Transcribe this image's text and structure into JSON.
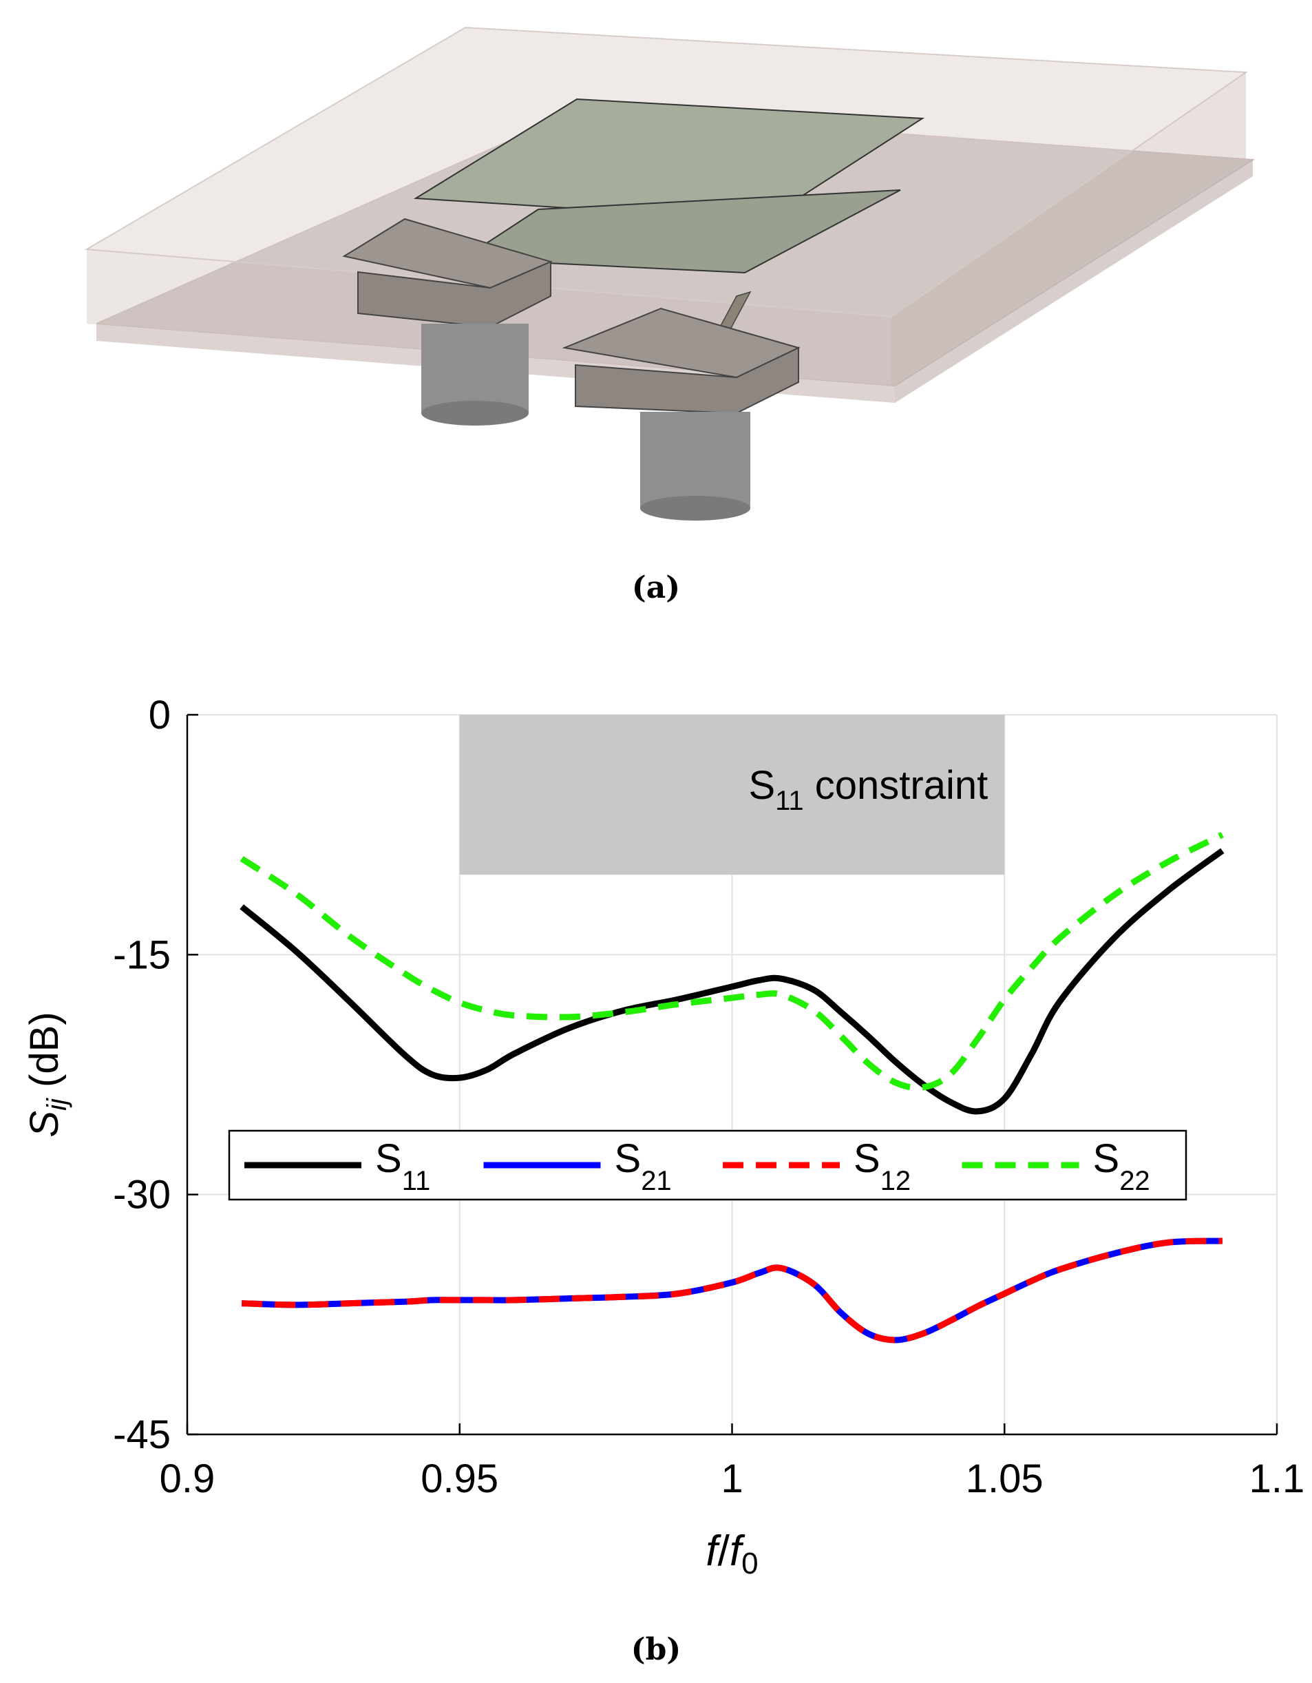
{
  "panel_a": {
    "caption": "(a)",
    "icon": "antenna-3d-model-illustration"
  },
  "panel_b": {
    "caption": "(b)"
  },
  "chart_data": {
    "type": "line",
    "title": "",
    "xlabel": "f/f0",
    "ylabel": "S_ij (dB)",
    "xlim": [
      0.9,
      1.1
    ],
    "ylim": [
      -45,
      0
    ],
    "xticks": [
      "0.9",
      "0.95",
      "1",
      "1.05",
      "1.1"
    ],
    "yticks": [
      "0",
      "-15",
      "-30",
      "-45"
    ],
    "grid": true,
    "legend_position": "lower-middle",
    "constraint_region": {
      "label_main": "S",
      "label_sub": "11",
      "label_rest": " constraint",
      "x": [
        0.95,
        1.05
      ],
      "y": [
        -10,
        0
      ],
      "color": "#c8c8c8"
    },
    "x": [
      0.91,
      0.92,
      0.93,
      0.94,
      0.945,
      0.95,
      0.955,
      0.96,
      0.97,
      0.98,
      0.99,
      1.0,
      1.005,
      1.009,
      1.015,
      1.02,
      1.025,
      1.03,
      1.035,
      1.04,
      1.045,
      1.05,
      1.055,
      1.06,
      1.07,
      1.08,
      1.09
    ],
    "series": [
      {
        "name": "S",
        "sub": "11",
        "color": "#000000",
        "dash": "solid",
        "values": [
          -12.0,
          -14.8,
          -18.0,
          -21.3,
          -22.5,
          -22.7,
          -22.2,
          -21.2,
          -19.6,
          -18.5,
          -17.8,
          -17.0,
          -16.6,
          -16.5,
          -17.2,
          -18.6,
          -20.1,
          -21.7,
          -23.1,
          -24.2,
          -24.8,
          -24.0,
          -21.2,
          -18.0,
          -14.0,
          -11.0,
          -8.5
        ]
      },
      {
        "name": "S",
        "sub": "21",
        "color": "#0000ff",
        "dash": "solid",
        "values": [
          -36.8,
          -36.9,
          -36.8,
          -36.7,
          -36.6,
          -36.6,
          -36.6,
          -36.6,
          -36.5,
          -36.4,
          -36.2,
          -35.5,
          -34.9,
          -34.6,
          -35.6,
          -37.4,
          -38.7,
          -39.1,
          -38.7,
          -37.9,
          -37.0,
          -36.2,
          -35.4,
          -34.7,
          -33.7,
          -33.0,
          -32.9
        ]
      },
      {
        "name": "S",
        "sub": "12",
        "color": "#ff0000",
        "dash": "dashed",
        "values": [
          -36.8,
          -36.9,
          -36.8,
          -36.7,
          -36.6,
          -36.6,
          -36.6,
          -36.6,
          -36.5,
          -36.4,
          -36.2,
          -35.5,
          -34.9,
          -34.6,
          -35.6,
          -37.4,
          -38.7,
          -39.1,
          -38.7,
          -37.9,
          -37.0,
          -36.2,
          -35.4,
          -34.7,
          -33.7,
          -33.0,
          -32.9
        ]
      },
      {
        "name": "S",
        "sub": "22",
        "color": "#22ee00",
        "dash": "dashed",
        "values": [
          -9.0,
          -11.2,
          -13.9,
          -16.2,
          -17.2,
          -18.0,
          -18.5,
          -18.8,
          -18.9,
          -18.6,
          -18.1,
          -17.7,
          -17.5,
          -17.5,
          -18.5,
          -20.1,
          -21.8,
          -23.0,
          -23.3,
          -22.5,
          -20.3,
          -17.8,
          -15.8,
          -14.0,
          -11.3,
          -9.2,
          -7.5
        ]
      }
    ]
  }
}
